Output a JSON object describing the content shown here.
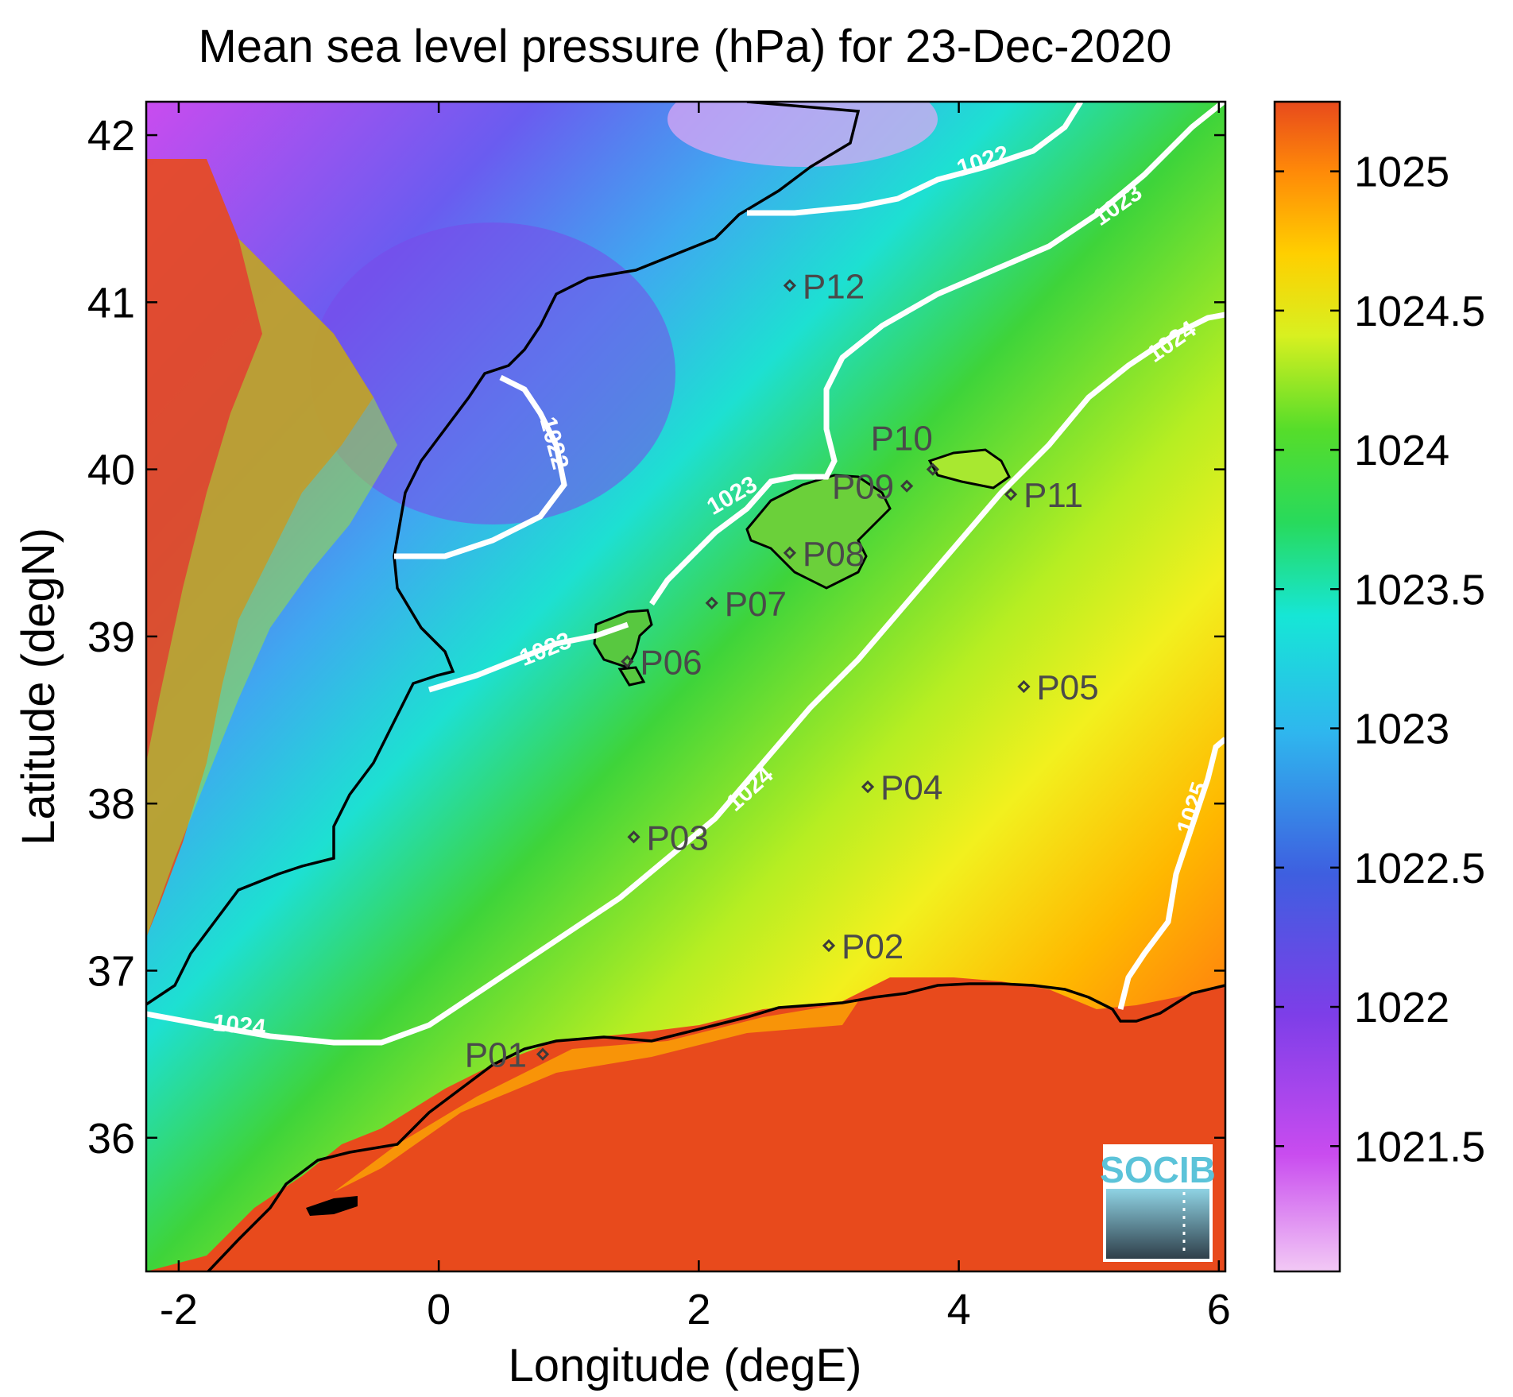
{
  "title": "Mean sea level pressure (hPa) for 23-Dec-2020",
  "xlabel": "Longitude (degE)",
  "ylabel": "Latitude (degN)",
  "x_ticks": [
    "-2",
    "0",
    "2",
    "4",
    "6"
  ],
  "y_ticks": [
    "42",
    "41",
    "40",
    "39",
    "38",
    "37",
    "36"
  ],
  "xlim": [
    -2.25,
    6.05
  ],
  "ylim": [
    35.2,
    42.2
  ],
  "colorbar": {
    "ticks": [
      "1025",
      "1024.5",
      "1024",
      "1023.5",
      "1023",
      "1022.5",
      "1022",
      "1021.5"
    ],
    "range": [
      1021.05,
      1025.25
    ],
    "colors": {
      "low": "#f2c9f5",
      "violet": "#9944e8",
      "blue": "#3a7ff0",
      "cyan": "#16e6d6",
      "green": "#2ed02e",
      "yellow": "#f0f020",
      "orange": "#ff9a00",
      "red": "#e84a1c"
    }
  },
  "contour_labels": [
    "1022",
    "1023",
    "1024",
    "1025"
  ],
  "points": [
    {
      "name": "P01",
      "lon": 0.8,
      "lat": 36.5
    },
    {
      "name": "P02",
      "lon": 3.0,
      "lat": 37.15
    },
    {
      "name": "P03",
      "lon": 1.5,
      "lat": 37.8
    },
    {
      "name": "P04",
      "lon": 3.3,
      "lat": 38.1
    },
    {
      "name": "P05",
      "lon": 4.5,
      "lat": 38.7
    },
    {
      "name": "P06",
      "lon": 1.45,
      "lat": 38.85
    },
    {
      "name": "P07",
      "lon": 2.1,
      "lat": 39.2
    },
    {
      "name": "P08",
      "lon": 2.7,
      "lat": 39.5
    },
    {
      "name": "P09",
      "lon": 3.6,
      "lat": 39.9
    },
    {
      "name": "P10",
      "lon": 3.8,
      "lat": 40.0
    },
    {
      "name": "P11",
      "lon": 4.4,
      "lat": 39.85
    },
    {
      "name": "P12",
      "lon": 2.7,
      "lat": 41.1
    }
  ],
  "logo": {
    "text": "SOCIB"
  }
}
